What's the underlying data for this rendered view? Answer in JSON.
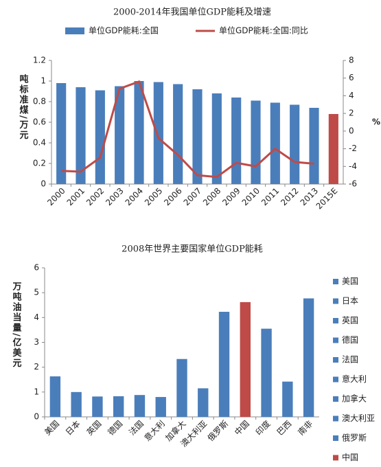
{
  "chart_data": [
    {
      "type": "combo",
      "title": "2000-2014年我国单位GDP能耗及增速",
      "ylabel": "吨标准煤/万元",
      "y2label": "%",
      "categories": [
        "2000",
        "2001",
        "2002",
        "2003",
        "2004",
        "2005",
        "2006",
        "2007",
        "2008",
        "2009",
        "2010",
        "2011",
        "2012",
        "2013",
        "2015E"
      ],
      "series": [
        {
          "name": "单位GDP能耗:全国",
          "type": "bar",
          "color": "#4a7ebb",
          "colors": [
            "#4a7ebb",
            "#4a7ebb",
            "#4a7ebb",
            "#4a7ebb",
            "#4a7ebb",
            "#4a7ebb",
            "#4a7ebb",
            "#4a7ebb",
            "#4a7ebb",
            "#4a7ebb",
            "#4a7ebb",
            "#4a7ebb",
            "#4a7ebb",
            "#4a7ebb",
            "#be4b48"
          ],
          "values": [
            0.98,
            0.94,
            0.91,
            0.95,
            1.0,
            0.99,
            0.97,
            0.92,
            0.88,
            0.84,
            0.81,
            0.79,
            0.77,
            0.74,
            0.68
          ]
        },
        {
          "name": "单位GDP能耗:全国:同比",
          "type": "line",
          "axis": "y2",
          "color": "#be4b48",
          "values": [
            -4.5,
            -4.6,
            -3.0,
            4.8,
            5.6,
            -0.8,
            -2.7,
            -5.0,
            -5.2,
            -3.6,
            -4.0,
            -2.0,
            -3.5,
            -3.7,
            null
          ]
        }
      ],
      "ylim": [
        0,
        1.2
      ],
      "yticks": [
        0,
        0.2,
        0.4,
        0.6,
        0.8,
        1,
        1.2
      ],
      "y2lim": [
        -6,
        8
      ],
      "y2ticks": [
        -6,
        -4,
        -2,
        0,
        2,
        4,
        6,
        8
      ],
      "grid": false,
      "legend": "top"
    },
    {
      "type": "bar",
      "title": "2008年世界主要国家单位GDP能耗",
      "ylabel": "万吨油当量/亿美元",
      "categories": [
        "美国",
        "日本",
        "英国",
        "德国",
        "法国",
        "意大利",
        "加拿大",
        "澳大利亚",
        "俄罗斯",
        "中国",
        "印度",
        "巴西",
        "南非"
      ],
      "values": [
        1.63,
        1.0,
        0.82,
        0.83,
        0.88,
        0.8,
        2.33,
        1.15,
        4.23,
        4.62,
        3.55,
        1.42,
        4.77
      ],
      "colors": [
        "#4a7ebb",
        "#4a7ebb",
        "#4a7ebb",
        "#4a7ebb",
        "#4a7ebb",
        "#4a7ebb",
        "#4a7ebb",
        "#4a7ebb",
        "#4a7ebb",
        "#be4b48",
        "#4a7ebb",
        "#4a7ebb",
        "#4a7ebb"
      ],
      "legend_entries": [
        "美国",
        "日本",
        "英国",
        "德国",
        "法国",
        "意大利",
        "加拿大",
        "澳大利亚",
        "俄罗斯",
        "中国"
      ],
      "ylim": [
        0,
        6
      ],
      "yticks": [
        0,
        1,
        2,
        3,
        4,
        5,
        6
      ],
      "grid": false,
      "legend": "right"
    }
  ]
}
